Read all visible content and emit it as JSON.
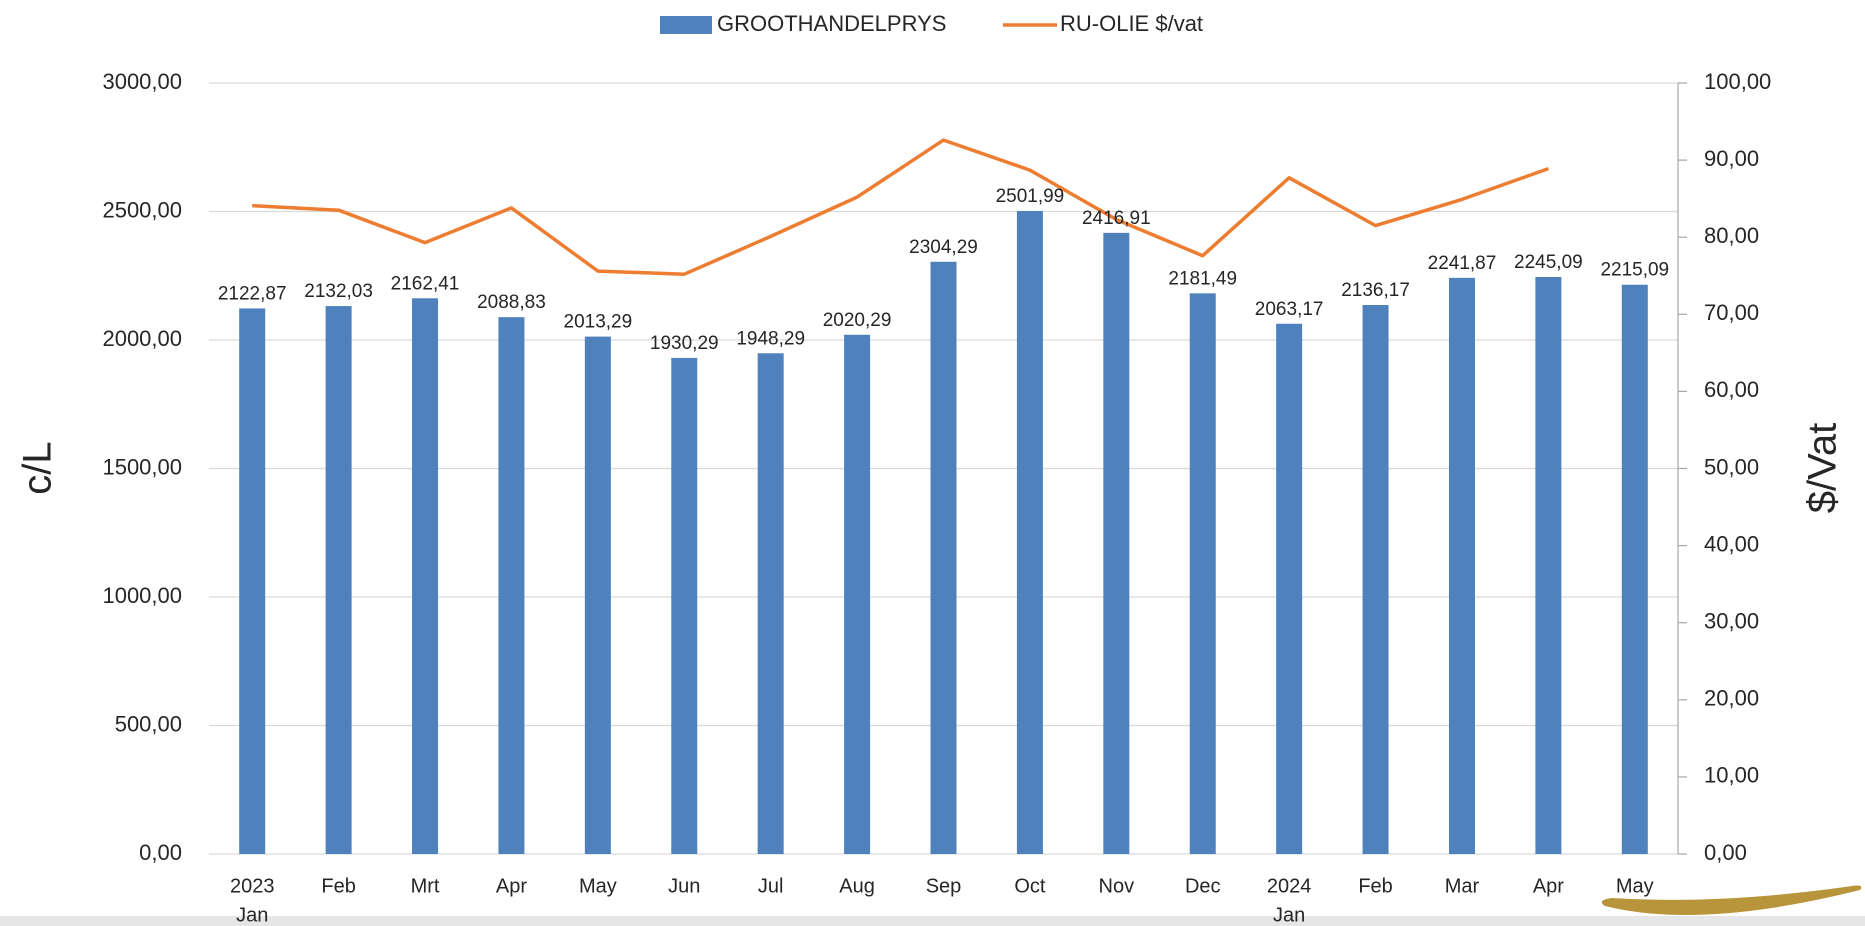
{
  "chart_data": {
    "type": "bar_line",
    "categories": [
      [
        "2023",
        "Jan"
      ],
      [
        "Feb"
      ],
      [
        "Mrt"
      ],
      [
        "Apr"
      ],
      [
        "May"
      ],
      [
        "Jun"
      ],
      [
        "Jul"
      ],
      [
        "Aug"
      ],
      [
        "Sep"
      ],
      [
        "Oct"
      ],
      [
        "Nov"
      ],
      [
        "Dec"
      ],
      [
        "2024",
        "Jan"
      ],
      [
        "Feb"
      ],
      [
        "Mar"
      ],
      [
        "Apr"
      ],
      [
        "May"
      ]
    ],
    "series": [
      {
        "name": "GROOTHANDELPRYS",
        "type": "bar",
        "color": "#4f81bd",
        "axis": "y",
        "values": [
          2122.87,
          2132.03,
          2162.41,
          2088.83,
          2013.29,
          1930.29,
          1948.29,
          2020.29,
          2304.29,
          2501.99,
          2416.91,
          2181.49,
          2063.17,
          2136.17,
          2241.87,
          2245.09,
          2215.09
        ],
        "value_labels": [
          "2122,87",
          "2132,03",
          "2162,41",
          "2088,83",
          "2013,29",
          "1930,29",
          "1948,29",
          "2020,29",
          "2304,29",
          "2501,99",
          "2416,91",
          "2181,49",
          "2063,17",
          "2136,17",
          "2241,87",
          "2245,09",
          "2215,09"
        ]
      },
      {
        "name": "RU-OLIE $/vat",
        "type": "line",
        "color": "#ed7d31",
        "axis": "y2",
        "values": [
          84.1,
          83.5,
          79.3,
          83.8,
          75.6,
          75.2,
          80.1,
          85.2,
          92.6,
          88.7,
          82.3,
          77.6,
          87.7,
          81.5,
          84.9,
          88.9,
          null
        ]
      }
    ],
    "ylabel": "c/L",
    "y2label": "$/Vat",
    "ylim": [
      0,
      3000
    ],
    "yticks": [
      {
        "value": 0,
        "label": "0,00"
      },
      {
        "value": 500,
        "label": "500,00"
      },
      {
        "value": 1000,
        "label": "1000,00"
      },
      {
        "value": 1500,
        "label": "1500,00"
      },
      {
        "value": 2000,
        "label": "2000,00"
      },
      {
        "value": 2500,
        "label": "2500,00"
      },
      {
        "value": 3000,
        "label": "3000,00"
      }
    ],
    "y2lim": [
      0,
      100
    ],
    "y2ticks": [
      {
        "value": 0,
        "label": "0,00"
      },
      {
        "value": 10,
        "label": "10,00"
      },
      {
        "value": 20,
        "label": "20,00"
      },
      {
        "value": 30,
        "label": "30,00"
      },
      {
        "value": 40,
        "label": "40,00"
      },
      {
        "value": 50,
        "label": "50,00"
      },
      {
        "value": 60,
        "label": "60,00"
      },
      {
        "value": 70,
        "label": "70,00"
      },
      {
        "value": 80,
        "label": "80,00"
      },
      {
        "value": 90,
        "label": "90,00"
      },
      {
        "value": 100,
        "label": "100,00"
      }
    ],
    "grid": true,
    "legend": "top"
  }
}
